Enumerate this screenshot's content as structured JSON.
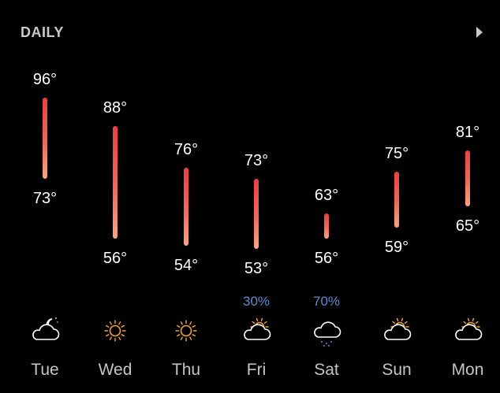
{
  "header": {
    "title": "DAILY"
  },
  "colors": {
    "background": "#000000",
    "bar_top": "#ee3e3e",
    "bar_bottom": "#fba47c",
    "precip": "#5d8ad6",
    "sun": "#f5a623",
    "cloud": "#ffffff"
  },
  "temp_range": {
    "min": 53,
    "max": 96
  },
  "days": [
    {
      "day": "Tue",
      "high": 96,
      "low": 73,
      "high_label": "96°",
      "low_label": "73°",
      "precip": "",
      "icon": "cloudy-night-icon"
    },
    {
      "day": "Wed",
      "high": 88,
      "low": 56,
      "high_label": "88°",
      "low_label": "56°",
      "precip": "",
      "icon": "sunny-icon"
    },
    {
      "day": "Thu",
      "high": 76,
      "low": 54,
      "high_label": "76°",
      "low_label": "54°",
      "precip": "",
      "icon": "sunny-icon"
    },
    {
      "day": "Fri",
      "high": 73,
      "low": 53,
      "high_label": "73°",
      "low_label": "53°",
      "precip": "30%",
      "icon": "partly-cloudy-icon"
    },
    {
      "day": "Sat",
      "high": 63,
      "low": 56,
      "high_label": "63°",
      "low_label": "56°",
      "precip": "70%",
      "icon": "drizzle-icon"
    },
    {
      "day": "Sun",
      "high": 75,
      "low": 59,
      "high_label": "75°",
      "low_label": "59°",
      "precip": "",
      "icon": "partly-cloudy-icon"
    },
    {
      "day": "Mon",
      "high": 81,
      "low": 65,
      "high_label": "81°",
      "low_label": "65°",
      "precip": "",
      "icon": "partly-cloudy-icon"
    }
  ]
}
